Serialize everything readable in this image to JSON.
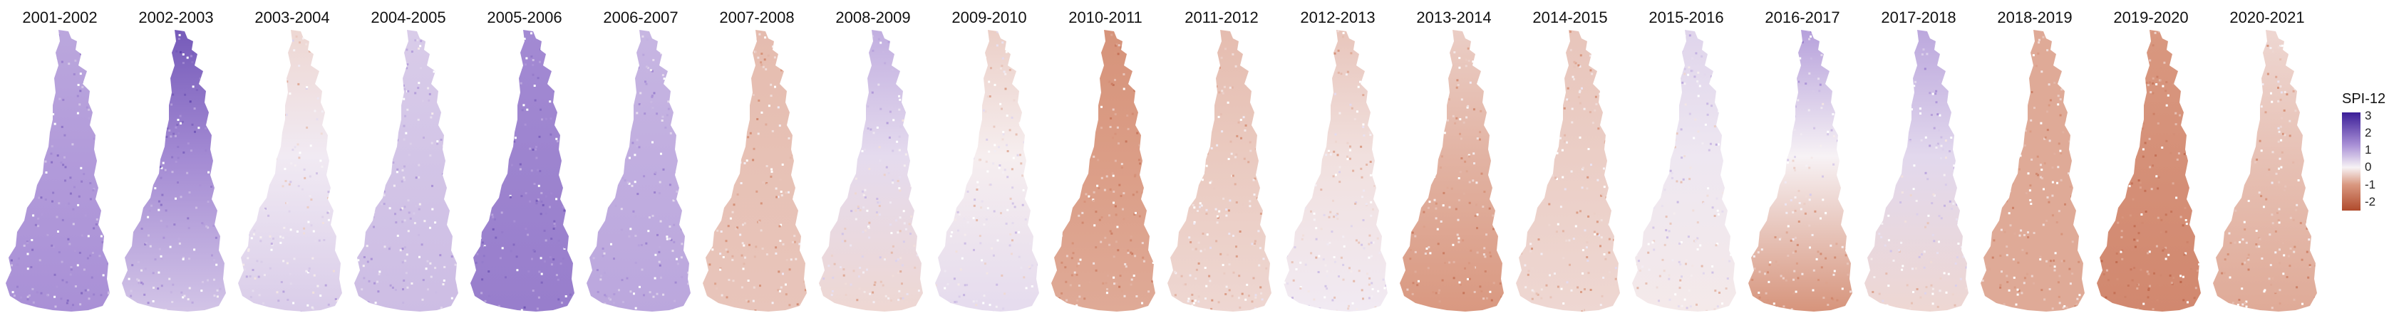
{
  "colors": {
    "scale": [
      "#b04a2c",
      "#d99880",
      "#f7f2f5",
      "#a990d6",
      "#3b1e98"
    ],
    "background": "#ffffff"
  },
  "legend": {
    "title": "SPI-12",
    "ticks": [
      "3",
      "2",
      "1",
      "0",
      "-1",
      "-2"
    ],
    "tick_values": [
      3,
      2,
      1,
      0,
      -1,
      -2
    ],
    "range": [
      -2.5,
      3.2
    ]
  },
  "panels": [
    {
      "title": "2001-2002",
      "north_spi": 1.0,
      "south_spi": 1.3
    },
    {
      "title": "2002-2003",
      "north_spi": 2.2,
      "south_spi": 0.6
    },
    {
      "title": "2003-2004",
      "north_spi": -0.3,
      "south_spi": 0.5
    },
    {
      "title": "2004-2005",
      "north_spi": 0.5,
      "south_spi": 0.7
    },
    {
      "title": "2005-2006",
      "north_spi": 1.4,
      "south_spi": 1.6
    },
    {
      "title": "2006-2007",
      "north_spi": 0.8,
      "south_spi": 1.0
    },
    {
      "title": "2007-2008",
      "north_spi": -0.6,
      "south_spi": -0.5
    },
    {
      "title": "2008-2009",
      "north_spi": 0.9,
      "south_spi": -0.3
    },
    {
      "title": "2009-2010",
      "north_spi": -0.4,
      "south_spi": 0.3
    },
    {
      "title": "2010-2011",
      "north_spi": -1.1,
      "south_spi": -0.8
    },
    {
      "title": "2011-2012",
      "north_spi": -0.6,
      "south_spi": -0.3
    },
    {
      "title": "2012-2013",
      "north_spi": -0.5,
      "south_spi": 0.1
    },
    {
      "title": "2013-2014",
      "north_spi": -0.4,
      "south_spi": -1.0
    },
    {
      "title": "2014-2015",
      "north_spi": -0.5,
      "south_spi": -0.3
    },
    {
      "title": "2015-2016",
      "north_spi": 0.4,
      "south_spi": -0.1
    },
    {
      "title": "2016-2017",
      "north_spi": 1.1,
      "south_spi": -1.1
    },
    {
      "title": "2017-2018",
      "north_spi": 1.0,
      "south_spi": -0.3
    },
    {
      "title": "2018-2019",
      "north_spi": -0.8,
      "south_spi": -0.8
    },
    {
      "title": "2019-2020",
      "north_spi": -1.0,
      "south_spi": -1.3
    },
    {
      "title": "2020-2021",
      "north_spi": -0.3,
      "south_spi": -0.8
    }
  ]
}
